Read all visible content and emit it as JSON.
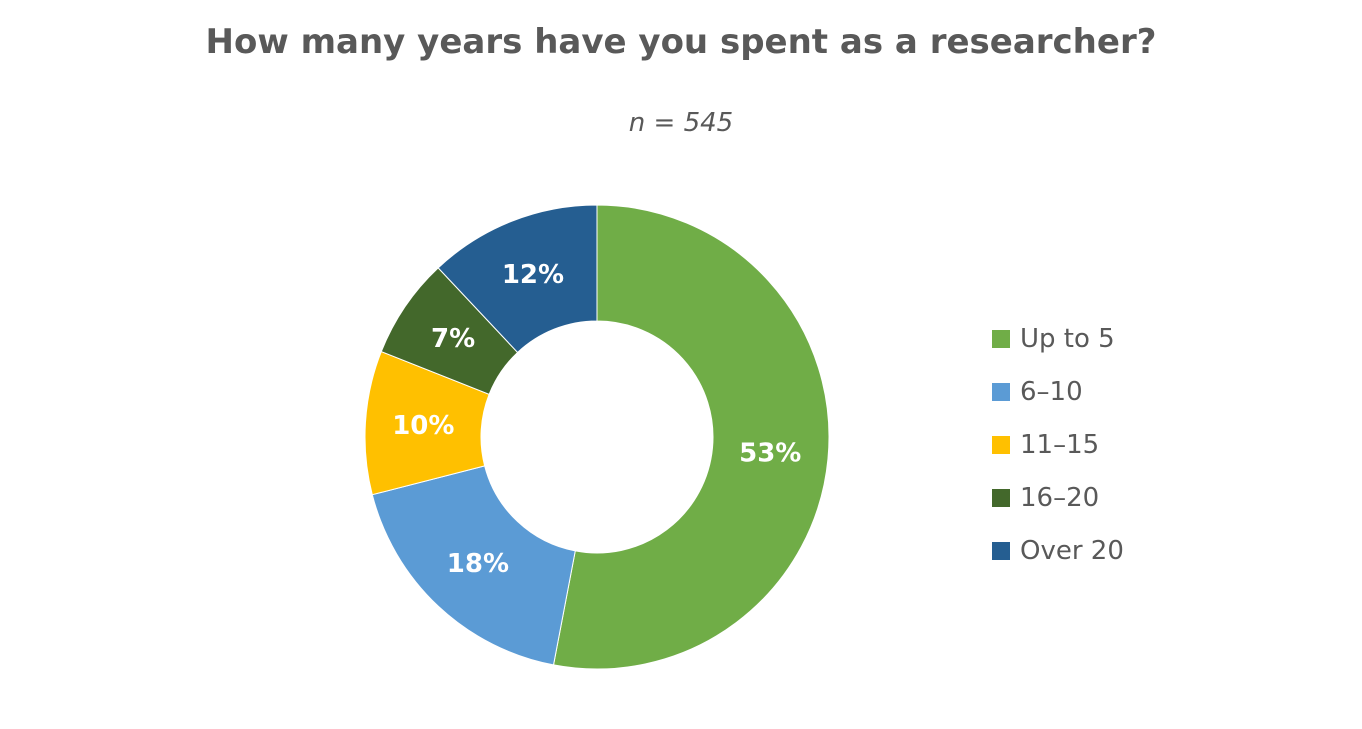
{
  "chart_data": {
    "type": "pie",
    "variant": "donut",
    "title": "How many years have you spent as a researcher?",
    "subtitle": "n = 545",
    "categories": [
      "Up to 5",
      "6–10",
      "11–15",
      "16–20",
      "Over 20"
    ],
    "values": [
      53,
      18,
      10,
      7,
      12
    ],
    "labels": [
      "53%",
      "18%",
      "10%",
      "7%",
      "12%"
    ],
    "colors": [
      "#70ad47",
      "#5b9bd5",
      "#ffc000",
      "#43682b",
      "#255e91"
    ],
    "legend": "right",
    "data_label_color": "#ffffff"
  }
}
